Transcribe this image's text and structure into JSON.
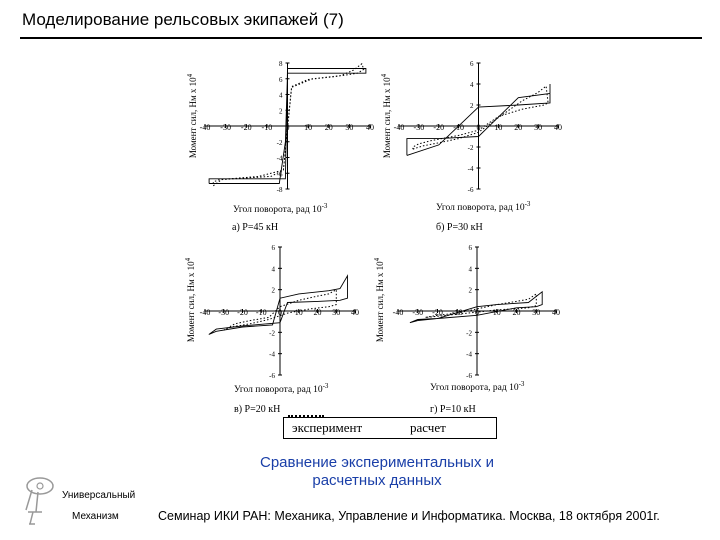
{
  "slide": {
    "title": "Моделирование рельсовых экипажей (7)",
    "caption_line1": "Сравнение экспериментальных и",
    "caption_line2": "расчетных данных",
    "org_line1": "Универсальный",
    "org_line2": "Механизм",
    "footer": "Семинар ИКИ РАН: Механика, Управление и Информатика. Москва, 18 октября 2001г.",
    "accent_color": "#1a3fa8"
  },
  "legend": {
    "experiment": "эксперимент",
    "calculation": "расчет"
  },
  "chart_data": [
    {
      "type": "line",
      "panel": "a",
      "caption": "а) P=45 кН",
      "xlabel": "Угол поворота, рад 10",
      "xlabel_exp": "-3",
      "ylabel": "Момент сил, Нм x 10",
      "ylabel_exp": "4",
      "xlim": [
        -40,
        40
      ],
      "ylim": [
        -8,
        8
      ],
      "x_ticks": [
        "-40",
        "-30",
        "-20",
        "-10",
        "0",
        "10",
        "20",
        "30",
        "40"
      ],
      "y_ticks": [
        "8",
        "6",
        "4",
        "2",
        "0",
        "-2",
        "-4",
        "-6",
        "-8"
      ],
      "series": [
        {
          "name": "эксперимент",
          "style": "dotted",
          "x": [
            -36,
            -32,
            -20,
            -8,
            -2,
            2,
            12,
            26,
            32,
            36,
            37,
            34,
            24,
            10,
            2,
            -2,
            -14,
            -28,
            -33,
            -36,
            -36
          ],
          "y": [
            -7.6,
            -6.8,
            -6.6,
            -6.4,
            -5.6,
            4.9,
            6.0,
            6.4,
            7.1,
            7.9,
            7.2,
            6.7,
            6.3,
            5.9,
            5.0,
            -5.6,
            -6.4,
            -6.7,
            -6.8,
            -7.1,
            -7.6
          ]
        },
        {
          "name": "расчет",
          "style": "solid",
          "x": [
            -38,
            -30,
            -10,
            -4,
            -1,
            0,
            4,
            20,
            30,
            38,
            38,
            30,
            4,
            0,
            -1,
            -30,
            -38,
            -38
          ],
          "y": [
            -7.3,
            -7.3,
            -7.3,
            -7.3,
            -2,
            6.7,
            6.7,
            6.7,
            6.7,
            6.7,
            7.3,
            7.3,
            7.3,
            7.3,
            -6.7,
            -6.7,
            -6.7,
            -7.3
          ]
        }
      ]
    },
    {
      "type": "line",
      "panel": "b",
      "caption": "б) P=30 кН",
      "xlabel": "Угол поворота, рад 10",
      "xlabel_exp": "-3",
      "ylabel": "Момент сил, Нм x 10",
      "ylabel_exp": "4",
      "xlim": [
        -40,
        40
      ],
      "ylim": [
        -6,
        6
      ],
      "x_ticks": [
        "-40",
        "-30",
        "-20",
        "-10",
        "0",
        "10",
        "20",
        "30",
        "40"
      ],
      "y_ticks": [
        "6",
        "4",
        "2",
        "0",
        "-2",
        "-4",
        "-6"
      ],
      "series": [
        {
          "name": "эксперимент",
          "style": "dotted",
          "x": [
            -33,
            -28,
            -20,
            -10,
            0,
            10,
            22,
            30,
            34,
            35,
            33,
            22,
            10,
            0,
            -10,
            -24,
            -30,
            -33,
            -33
          ],
          "y": [
            -2.2,
            -1.9,
            -1.6,
            -1.2,
            -0.6,
            0.8,
            2.4,
            3.2,
            3.8,
            2.2,
            2.0,
            1.6,
            0.9,
            -0.4,
            -0.9,
            -1.4,
            -1.7,
            -2.0,
            -2.2
          ]
        },
        {
          "name": "расчет",
          "style": "solid",
          "x": [
            -36,
            -36,
            -20,
            0,
            20,
            36,
            36,
            36,
            20,
            0,
            -20,
            -36
          ],
          "y": [
            -2.8,
            -1.2,
            -1.2,
            -1.0,
            2.7,
            3.1,
            4.0,
            2.2,
            2.0,
            1.8,
            -1.8,
            -2.8
          ]
        }
      ]
    },
    {
      "type": "line",
      "panel": "c",
      "caption": "в) P=20 кН",
      "xlabel": "Угол поворота, рад 10",
      "xlabel_exp": "-3",
      "ylabel": "Момент сил, Нм x 10",
      "ylabel_exp": "4",
      "xlim": [
        -40,
        40
      ],
      "ylim": [
        -6,
        6
      ],
      "x_ticks": [
        "-40",
        "-30",
        "-20",
        "-10",
        "0",
        "10",
        "20",
        "30",
        "40"
      ],
      "y_ticks": [
        "6",
        "4",
        "2",
        "0",
        "-2",
        "-4",
        "-6"
      ],
      "series": [
        {
          "name": "эксперимент",
          "style": "dotted",
          "x": [
            -30,
            -24,
            -16,
            -6,
            0,
            10,
            20,
            26,
            30,
            30,
            26,
            16,
            4,
            -6,
            -16,
            -26,
            -30
          ],
          "y": [
            -1.8,
            -1.2,
            -0.9,
            -0.6,
            0.4,
            1.0,
            1.4,
            1.6,
            2.0,
            0.6,
            0.4,
            0.2,
            -0.2,
            -0.8,
            -1.2,
            -1.5,
            -1.8
          ]
        },
        {
          "name": "расчет",
          "style": "solid",
          "x": [
            -38,
            -34,
            -20,
            -4,
            0,
            10,
            26,
            32,
            36,
            36,
            32,
            20,
            4,
            0,
            -20,
            -34,
            -38
          ],
          "y": [
            -2.2,
            -1.9,
            -1.5,
            -1.3,
            1.2,
            1.6,
            1.9,
            2.1,
            3.3,
            1.2,
            1.0,
            0.9,
            0.8,
            -1.1,
            -1.4,
            -1.7,
            -2.2
          ]
        }
      ]
    },
    {
      "type": "line",
      "panel": "d",
      "caption": "г) P=10 кН",
      "xlabel": "Угол поворота, рад 10",
      "xlabel_exp": "-3",
      "ylabel": "Момент сил, Нм x 10",
      "ylabel_exp": "4",
      "xlim": [
        -40,
        40
      ],
      "ylim": [
        -6,
        6
      ],
      "x_ticks": [
        "-40",
        "-30",
        "-20",
        "-10",
        "0",
        "10",
        "20",
        "30",
        "40"
      ],
      "y_ticks": [
        "6",
        "4",
        "2",
        "0",
        "-2",
        "-4",
        "-6"
      ],
      "series": [
        {
          "name": "эксперимент",
          "style": "dotted",
          "x": [
            -26,
            -20,
            -10,
            0,
            10,
            20,
            26,
            30,
            30,
            26,
            18,
            10,
            0,
            -10,
            -20,
            -26
          ],
          "y": [
            -0.6,
            -0.4,
            -0.2,
            0.2,
            0.6,
            0.9,
            1.1,
            1.6,
            0.5,
            0.3,
            0.2,
            0.1,
            -0.1,
            -0.3,
            -0.5,
            -0.6
          ]
        },
        {
          "name": "расчет",
          "style": "solid",
          "x": [
            -34,
            -30,
            -20,
            0,
            10,
            26,
            33,
            33,
            30,
            20,
            0,
            -20,
            -30,
            -34
          ],
          "y": [
            -1.1,
            -0.8,
            -0.7,
            0.4,
            0.6,
            0.8,
            1.8,
            0.6,
            0.4,
            0.3,
            -0.4,
            -0.7,
            -0.9,
            -1.1
          ]
        }
      ]
    }
  ]
}
